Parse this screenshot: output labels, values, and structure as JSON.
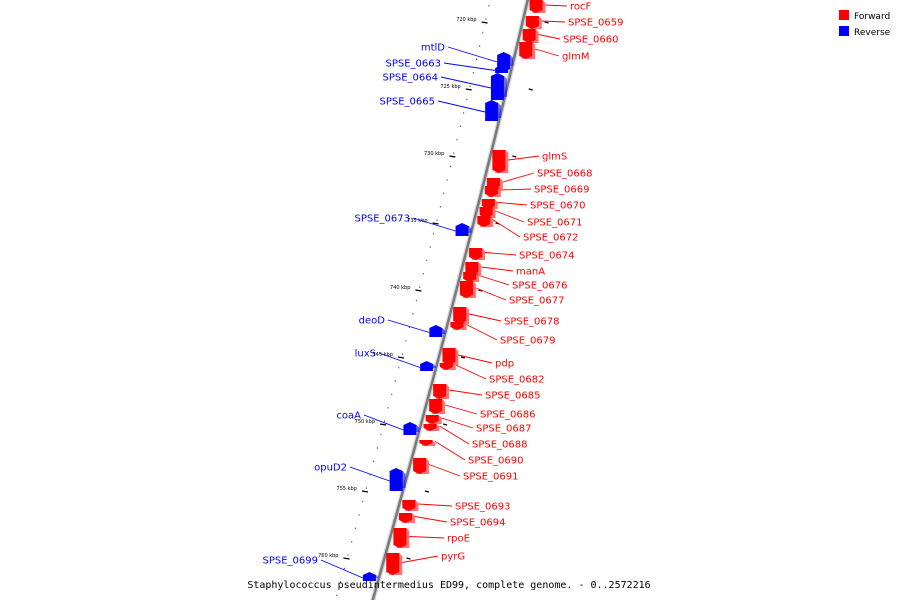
{
  "caption": "Staphylococcus pseudintermedius ED99, complete genome. - 0..2572216",
  "legend": [
    {
      "label": "Forward",
      "color": "#ff0000"
    },
    {
      "label": "Reverse",
      "color": "#0000ff"
    }
  ],
  "colors": {
    "forward": "#ff0000",
    "reverse": "#0000ff",
    "backbone": "#7a7a7a"
  },
  "ticks": [
    {
      "label": "720 kbp",
      "kbp": 720
    },
    {
      "label": "725 kbp",
      "kbp": 725
    },
    {
      "label": "730 kbp",
      "kbp": 730
    },
    {
      "label": "735 kbp",
      "kbp": 735
    },
    {
      "label": "740 kbp",
      "kbp": 740
    },
    {
      "label": "745 kbp",
      "kbp": 745
    },
    {
      "label": "750 kbp",
      "kbp": 750
    },
    {
      "label": "755 kbp",
      "kbp": 755
    },
    {
      "label": "760 kbp",
      "kbp": 760
    }
  ],
  "genes": [
    {
      "name": "rocF",
      "strand": "forward"
    },
    {
      "name": "SPSE_0659",
      "strand": "forward"
    },
    {
      "name": "SPSE_0660",
      "strand": "forward"
    },
    {
      "name": "glmM",
      "strand": "forward"
    },
    {
      "name": "glmS",
      "strand": "forward"
    },
    {
      "name": "SPSE_0668",
      "strand": "forward"
    },
    {
      "name": "SPSE_0669",
      "strand": "forward"
    },
    {
      "name": "SPSE_0670",
      "strand": "forward"
    },
    {
      "name": "SPSE_0671",
      "strand": "forward"
    },
    {
      "name": "SPSE_0672",
      "strand": "forward"
    },
    {
      "name": "SPSE_0674",
      "strand": "forward"
    },
    {
      "name": "manA",
      "strand": "forward"
    },
    {
      "name": "SPSE_0676",
      "strand": "forward"
    },
    {
      "name": "SPSE_0677",
      "strand": "forward"
    },
    {
      "name": "SPSE_0678",
      "strand": "forward"
    },
    {
      "name": "SPSE_0679",
      "strand": "forward"
    },
    {
      "name": "pdp",
      "strand": "forward"
    },
    {
      "name": "SPSE_0682",
      "strand": "forward"
    },
    {
      "name": "SPSE_0685",
      "strand": "forward"
    },
    {
      "name": "SPSE_0686",
      "strand": "forward"
    },
    {
      "name": "SPSE_0687",
      "strand": "forward"
    },
    {
      "name": "SPSE_0688",
      "strand": "forward"
    },
    {
      "name": "SPSE_0690",
      "strand": "forward"
    },
    {
      "name": "SPSE_0691",
      "strand": "forward"
    },
    {
      "name": "SPSE_0693",
      "strand": "forward"
    },
    {
      "name": "SPSE_0694",
      "strand": "forward"
    },
    {
      "name": "rpoE",
      "strand": "forward"
    },
    {
      "name": "pyrG",
      "strand": "forward"
    },
    {
      "name": "mtlD",
      "strand": "reverse"
    },
    {
      "name": "SPSE_0663",
      "strand": "reverse"
    },
    {
      "name": "SPSE_0664",
      "strand": "reverse"
    },
    {
      "name": "SPSE_0665",
      "strand": "reverse"
    },
    {
      "name": "SPSE_0673",
      "strand": "reverse"
    },
    {
      "name": "deoD",
      "strand": "reverse"
    },
    {
      "name": "luxS",
      "strand": "reverse"
    },
    {
      "name": "coaA",
      "strand": "reverse"
    },
    {
      "name": "opuD2",
      "strand": "reverse"
    },
    {
      "name": "SPSE_0699",
      "strand": "reverse"
    }
  ]
}
